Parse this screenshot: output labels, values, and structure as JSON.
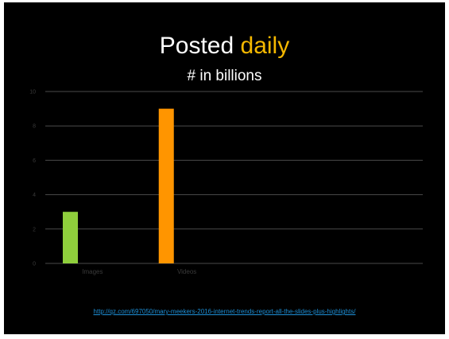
{
  "slide": {
    "title_main": "Posted",
    "title_accent": "daily",
    "subtitle": "# in billions",
    "source_url": "http://qz.com/697050/mary-meekers-2016-internet-trends-report-all-the-slides-plus-highlights/"
  },
  "colors": {
    "background": "#000000",
    "title_accent": "#f5b800",
    "images_bar": "#8fcf3c",
    "videos_bar": "#ff9500",
    "link": "#1d8fd6"
  },
  "chart_data": {
    "type": "bar",
    "categories": [
      "Images",
      "Videos"
    ],
    "values": [
      3,
      9
    ],
    "bar_colors": [
      "#8fcf3c",
      "#ff9500"
    ],
    "title": "",
    "xlabel": "",
    "ylabel": "",
    "ylim": [
      0,
      10
    ],
    "yticks": [
      0,
      2,
      4,
      6,
      8,
      10
    ],
    "grid": true,
    "legend": "none"
  }
}
